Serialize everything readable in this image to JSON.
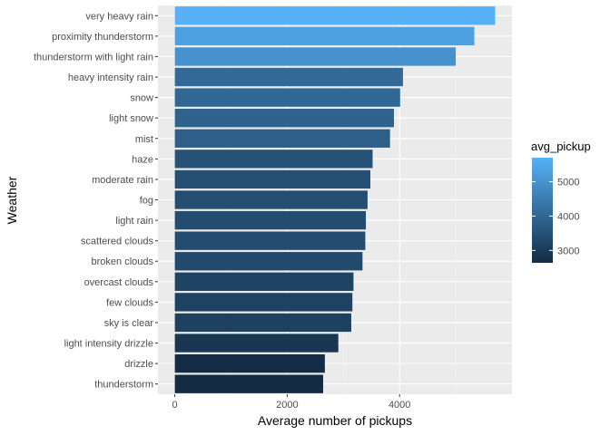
{
  "chart_data": {
    "type": "bar",
    "orientation": "horizontal",
    "xlabel": "Average number of pickups",
    "ylabel": "Weather",
    "xlim": [
      -300,
      6000
    ],
    "x_ticks": [
      0,
      2000,
      4000
    ],
    "x_tick_labels": [
      "0",
      "2000",
      "4000"
    ],
    "grid": true,
    "categories": [
      "very heavy rain",
      "proximity thunderstorm",
      "thunderstorm with light rain",
      "heavy intensity rain",
      "snow",
      "light snow",
      "mist",
      "haze",
      "moderate rain",
      "fog",
      "light rain",
      "scattered clouds",
      "broken clouds",
      "overcast clouds",
      "few clouds",
      "sky is clear",
      "light intensity drizzle",
      "drizzle",
      "thunderstorm"
    ],
    "values": [
      5700,
      5330,
      5000,
      4060,
      4010,
      3900,
      3830,
      3520,
      3480,
      3430,
      3400,
      3390,
      3340,
      3180,
      3160,
      3140,
      2910,
      2670,
      2640
    ],
    "legend": {
      "title": "avg_pickup",
      "position": "right",
      "ticks": [
        3000,
        4000,
        5000
      ],
      "tick_labels": [
        "3000",
        "4000",
        "5000"
      ],
      "range": [
        2640,
        5700
      ],
      "color_low": "#132b43",
      "color_high": "#56b1f7"
    },
    "colors": {
      "panel_background": "#ebebeb",
      "grid_major": "#ffffff",
      "grid_minor": "#f5f5f5"
    }
  }
}
